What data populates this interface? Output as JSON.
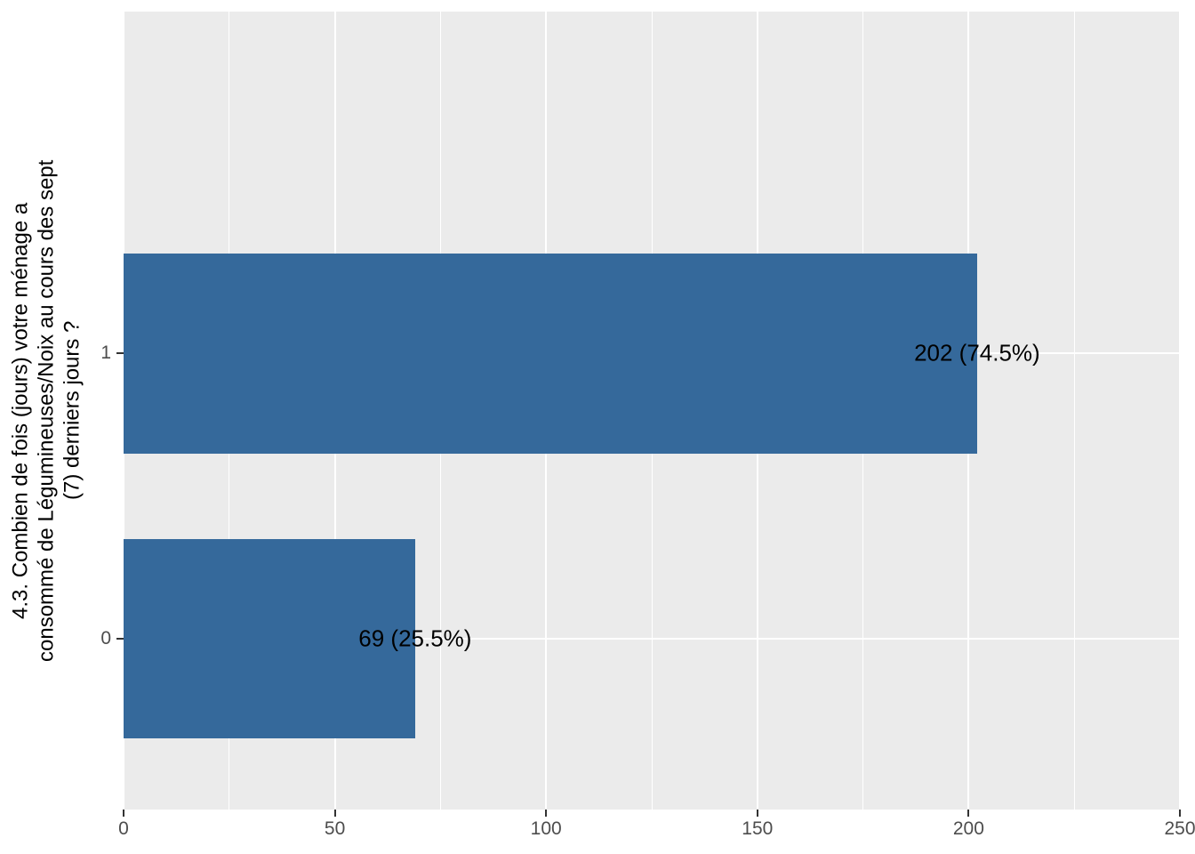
{
  "chart_data": {
    "type": "bar",
    "orientation": "horizontal",
    "title": "",
    "xlabel": "",
    "ylabel": "4.3. Combien de fois (jours) votre ménage a\nconsommé de Légumineuses/Noix au cours des sept\n(7) derniers jours ?",
    "categories": [
      "0",
      "1"
    ],
    "values": [
      69,
      202
    ],
    "percentages": [
      25.5,
      74.5
    ],
    "bar_labels": [
      "69 (25.5%)",
      "202 (74.5%)"
    ],
    "xlim": [
      0,
      250
    ],
    "xticks": [
      0,
      50,
      100,
      150,
      200,
      250
    ],
    "xticks_minor": [
      25,
      75,
      125,
      175,
      225
    ],
    "grid": true,
    "legend": false,
    "colors": {
      "bar": "#35699B",
      "panel_background": "#EBEBEB",
      "grid_major": "#FFFFFF",
      "grid_minor": "#FFFFFF",
      "tick": "#333333",
      "axis_text": "#4D4D4D",
      "label_text": "#000000",
      "page_background": "#FFFFFF"
    }
  }
}
